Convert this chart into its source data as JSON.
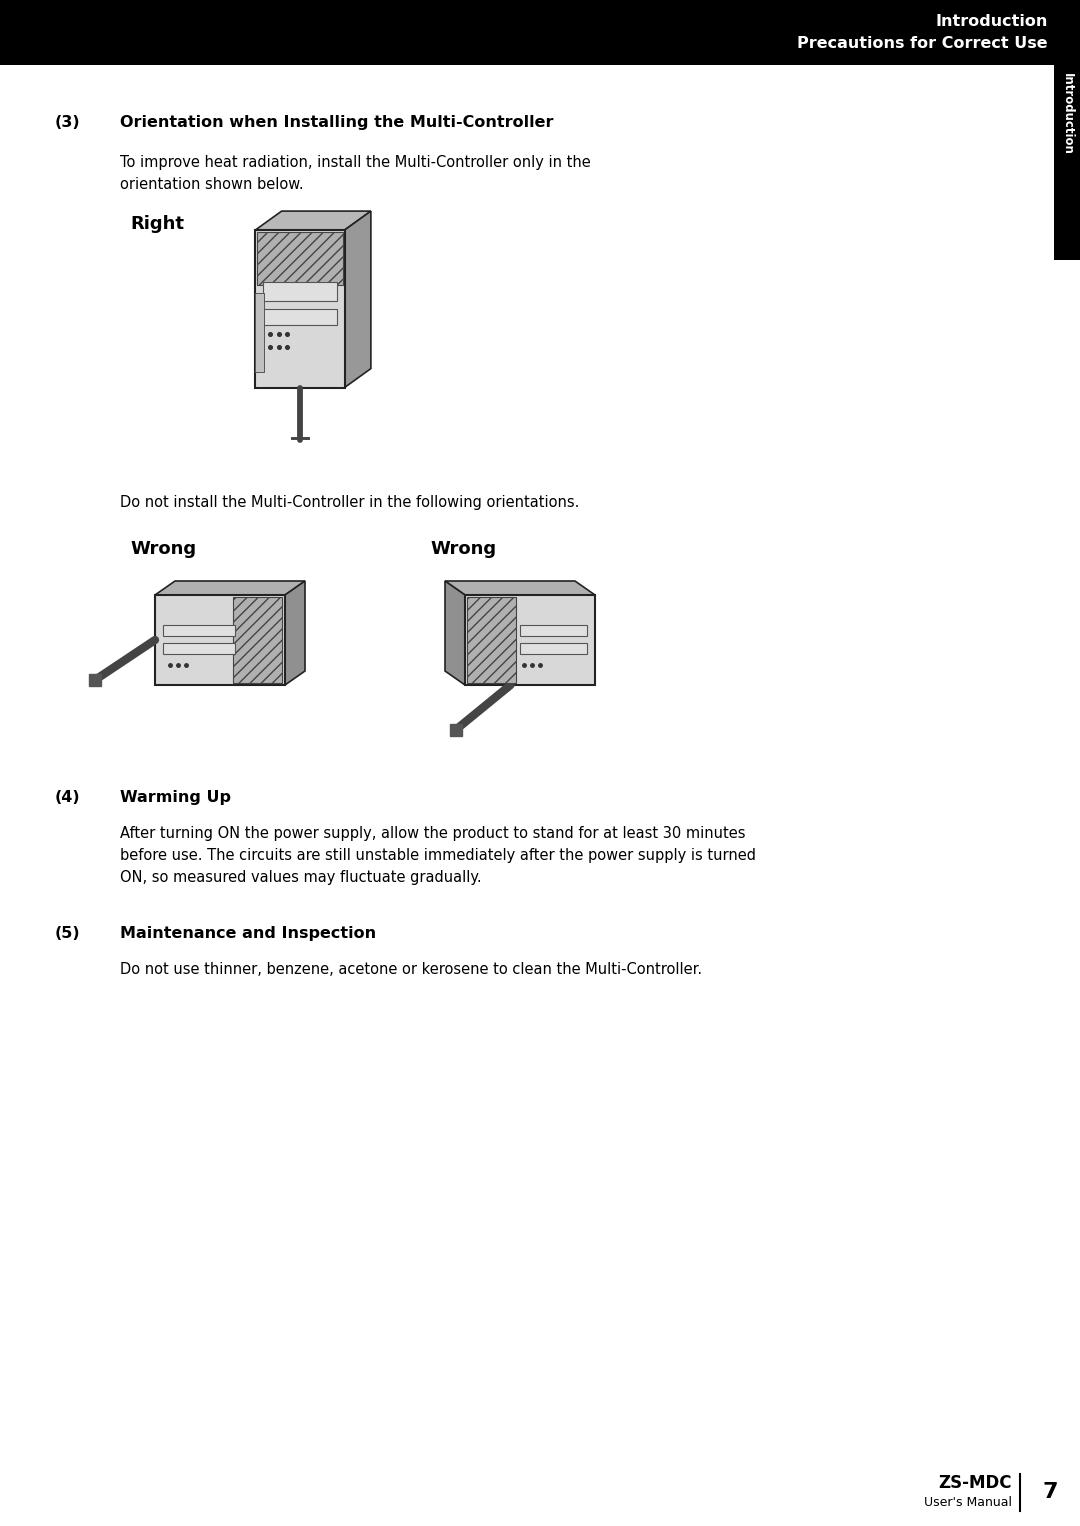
{
  "bg_color": "#ffffff",
  "header_bg": "#000000",
  "header_line1": "Introduction",
  "header_line2": "Precautions for Correct Use",
  "header_text_color": "#ffffff",
  "sidebar_bg": "#000000",
  "sidebar_text": "Introduction",
  "sidebar_text_color": "#ffffff",
  "section3_label": "(3)",
  "section3_title": "Orientation when Installing the Multi-Controller",
  "section3_intro": "To improve heat radiation, install the Multi-Controller only in the\norientation shown below.",
  "right_label": "Right",
  "wrong_label1": "Wrong",
  "wrong_label2": "Wrong",
  "wrong_intro": "Do not install the Multi-Controller in the following orientations.",
  "section4_label": "(4)",
  "section4_title": "Warming Up",
  "section4_body": "After turning ON the power supply, allow the product to stand for at least 30 minutes\nbefore use. The circuits are still unstable immediately after the power supply is turned\nON, so measured values may fluctuate gradually.",
  "section5_label": "(5)",
  "section5_title": "Maintenance and Inspection",
  "section5_body": "Do not use thinner, benzene, acetone or kerosene to clean the Multi-Controller.",
  "footer_product": "ZS-MDC",
  "footer_manual": "User's Manual",
  "footer_page": "7"
}
